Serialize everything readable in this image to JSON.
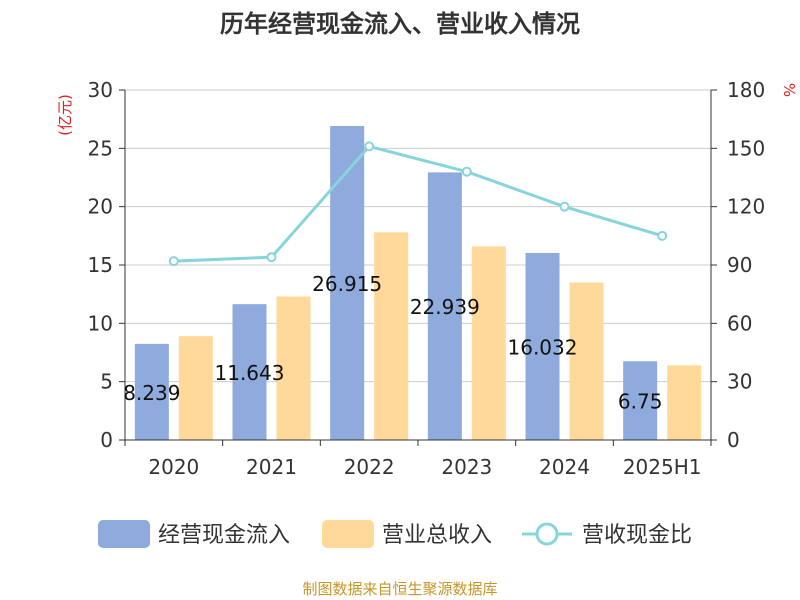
{
  "chart_data": {
    "type": "bar",
    "title": "历年经营现金流入、营业收入情况",
    "categories": [
      "2020",
      "2021",
      "2022",
      "2023",
      "2024",
      "2025H1"
    ],
    "ylabel_left": "(亿元)",
    "ylabel_right": "%",
    "ylim_left": [
      0,
      30
    ],
    "ylim_right": [
      0,
      180
    ],
    "yticks_left": [
      "0",
      "5",
      "10",
      "15",
      "20",
      "25",
      "30"
    ],
    "yticks_right": [
      "0",
      "30",
      "60",
      "90",
      "120",
      "150",
      "180"
    ],
    "grid": true,
    "legend_position": "bottom",
    "series": [
      {
        "name": "经营现金流入",
        "type": "bar",
        "axis": "left",
        "color": "#8faadc",
        "values": [
          8.239,
          11.643,
          26.915,
          22.939,
          16.032,
          6.75
        ],
        "labels": [
          "8.239",
          "11.643",
          "26.915",
          "22.939",
          "16.032",
          "6.75"
        ]
      },
      {
        "name": "营业总收入",
        "type": "bar",
        "axis": "left",
        "color": "#ffd99a",
        "values": [
          8.9,
          12.3,
          17.8,
          16.6,
          13.5,
          6.4
        ]
      },
      {
        "name": "营收现金比",
        "type": "line",
        "axis": "right",
        "color": "#88d4db",
        "values": [
          92,
          94,
          151,
          138,
          120,
          105
        ]
      }
    ]
  },
  "source": "制图数据来自恒生聚源数据库"
}
